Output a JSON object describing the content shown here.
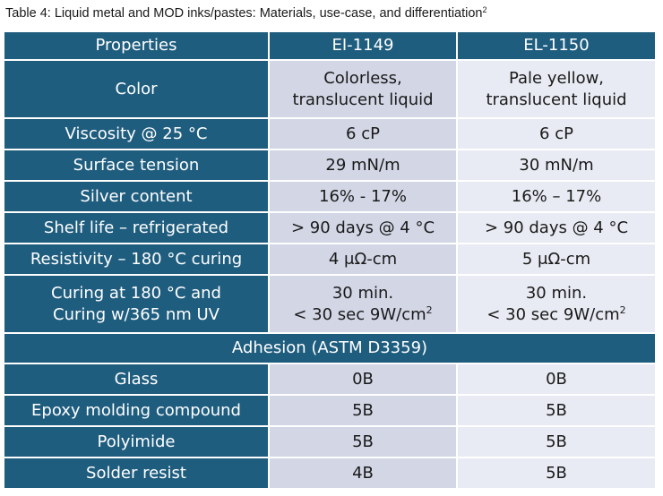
{
  "caption": {
    "text": "Table 4: Liquid metal and MOD inks/pastes: Materials, use-case, and differentiation",
    "ref": "2"
  },
  "table": {
    "headers": [
      "Properties",
      "EI-1149",
      "EL-1150"
    ],
    "rows": [
      {
        "property": [
          "Color"
        ],
        "ei1149": [
          "Colorless,",
          "translucent liquid"
        ],
        "el1150": [
          "Pale yellow,",
          "translucent liquid"
        ]
      },
      {
        "property": [
          "Viscosity @ 25 °C"
        ],
        "ei1149": [
          "6 cP"
        ],
        "el1150": [
          "6 cP"
        ]
      },
      {
        "property": [
          "Surface tension"
        ],
        "ei1149": [
          "29 mN/m"
        ],
        "el1150": [
          "30 mN/m"
        ]
      },
      {
        "property": [
          "Silver content"
        ],
        "ei1149": [
          "16% - 17%"
        ],
        "el1150": [
          "16% – 17%"
        ]
      },
      {
        "property": [
          "Shelf life – refrigerated"
        ],
        "ei1149": [
          "> 90 days @ 4 °C"
        ],
        "el1150": [
          "> 90 days @ 4 °C"
        ]
      },
      {
        "property": [
          "Resistivity – 180 °C curing"
        ],
        "ei1149": [
          "4 μΩ-cm"
        ],
        "el1150": [
          "5 μΩ-cm"
        ]
      },
      {
        "property": [
          "Curing at 180 °C and",
          "Curing w/365 nm UV"
        ],
        "ei1149": [
          "30 min.",
          "< 30 sec 9W/cm"
        ],
        "el1150": [
          "30 min.",
          "< 30 sec 9W/cm"
        ],
        "sup": "2"
      }
    ],
    "section": "Adhesion (ASTM D3359)",
    "adhesion_rows": [
      {
        "property": "Glass",
        "ei1149": "0B",
        "el1150": "0B"
      },
      {
        "property": "Epoxy molding compound",
        "ei1149": "5B",
        "el1150": "5B"
      },
      {
        "property": "Polyimide",
        "ei1149": "5B",
        "el1150": "5B"
      },
      {
        "property": "Solder resist",
        "ei1149": "4B",
        "el1150": "5B"
      }
    ]
  }
}
